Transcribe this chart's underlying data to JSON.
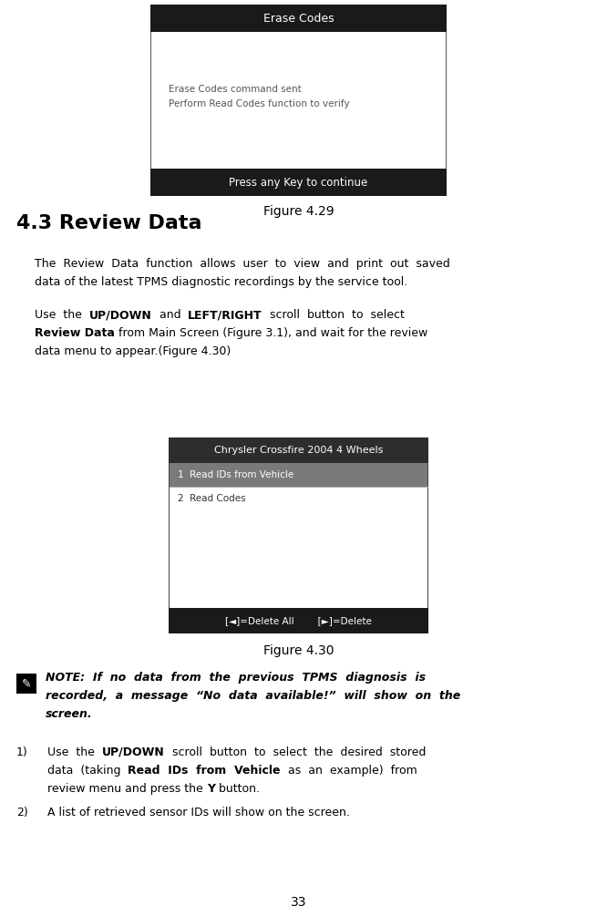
{
  "page_bg": "#ffffff",
  "page_width": 6.55,
  "page_height": 10.05,
  "dpi": 100,
  "fig429": {
    "title": "Erase Codes",
    "body_lines": [
      "Erase Codes command sent",
      "Perform Read Codes function to verify"
    ],
    "footer": "Press any Key to continue",
    "title_bg": "#1a1a1a",
    "footer_bg": "#1a1a1a",
    "title_color": "#ffffff",
    "footer_color": "#ffffff",
    "body_bg": "#ffffff",
    "body_color": "#555555",
    "border_color": "#555555"
  },
  "fig430": {
    "title": "Chrysler Crossfire 2004 4 Wheels",
    "menu_items": [
      "1  Read IDs from Vehicle",
      "2  Read Codes"
    ],
    "footer": "[◄]=Delete All        [►]=Delete",
    "title_bg": "#2d2d2d",
    "selected_bg": "#7a7a7a",
    "normal_bg": "#ffffff",
    "footer_bg": "#1a1a1a",
    "title_color": "#ffffff",
    "selected_color": "#ffffff",
    "normal_color": "#333333",
    "footer_color": "#ffffff",
    "border_color": "#444444"
  },
  "section_heading": "4.3 Review Data",
  "figure429_label": "Figure 4.29",
  "figure430_label": "Figure 4.30",
  "page_number": "33"
}
